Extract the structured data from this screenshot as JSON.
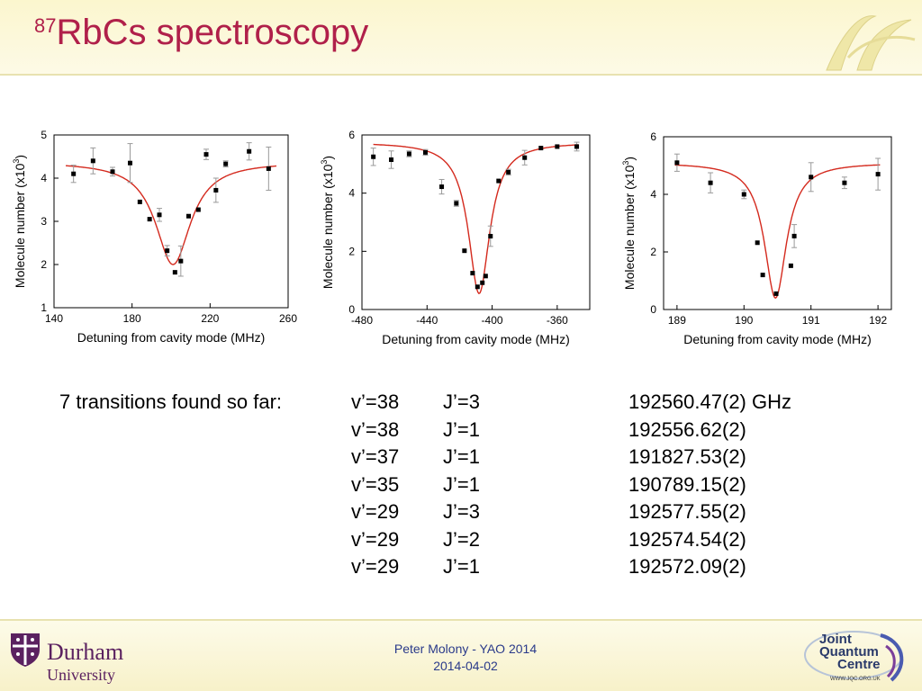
{
  "slide": {
    "title_sup": "87",
    "title_main": "RbCs spectroscopy"
  },
  "transitions": {
    "label": "7 transitions found so far:",
    "rows": [
      {
        "v": "v’=38",
        "j": "J’=3",
        "freq": "192560.47(2) GHz"
      },
      {
        "v": "v’=38",
        "j": "J’=1",
        "freq": "192556.62(2)"
      },
      {
        "v": "v’=37",
        "j": "J’=1",
        "freq": "191827.53(2)"
      },
      {
        "v": "v’=35",
        "j": "J’=1",
        "freq": "190789.15(2)"
      },
      {
        "v": "v’=29",
        "j": "J’=3",
        "freq": "192577.55(2)"
      },
      {
        "v": "v’=29",
        "j": "J’=2",
        "freq": "192574.54(2)"
      },
      {
        "v": "v’=29",
        "j": "J’=1",
        "freq": "192572.09(2)"
      }
    ]
  },
  "footer": {
    "author": "Peter Molony - YAO 2014",
    "date": "2014-04-02",
    "durham_name": "Durham",
    "durham_sub": "University",
    "jqc_line1": "Joint",
    "jqc_line2": "Quantum",
    "jqc_line3": "Centre",
    "jqc_url": "WWW.JQC.ORG.UK"
  },
  "colors": {
    "title": "#b0204a",
    "fit_line": "#d42a1e",
    "points": "#000000",
    "error_bars": "#9a9a9a",
    "footer_text": "#2a3a8a"
  },
  "chart_data": [
    {
      "type": "scatter",
      "xlabel": "Detuning from cavity mode (MHz)",
      "ylabel": "Molecule number (x10",
      "ylabel_sup": "3",
      "xlim": [
        140,
        260
      ],
      "ylim": [
        1,
        5
      ],
      "xticks": [
        140,
        180,
        220,
        260
      ],
      "yticks": [
        1,
        2,
        3,
        4,
        5
      ],
      "points": [
        {
          "x": 150,
          "y": 4.1,
          "err": 0.2
        },
        {
          "x": 160,
          "y": 4.4,
          "err": 0.3
        },
        {
          "x": 170,
          "y": 4.15,
          "err": 0.1
        },
        {
          "x": 179,
          "y": 4.35,
          "err": 0.45
        },
        {
          "x": 184,
          "y": 3.45,
          "err": 0
        },
        {
          "x": 189,
          "y": 3.05,
          "err": 0
        },
        {
          "x": 194,
          "y": 3.15,
          "err": 0.15
        },
        {
          "x": 198,
          "y": 2.32,
          "err": 0.12
        },
        {
          "x": 202,
          "y": 1.82,
          "err": 0
        },
        {
          "x": 205,
          "y": 2.08,
          "err": 0.35
        },
        {
          "x": 209,
          "y": 3.12,
          "err": 0
        },
        {
          "x": 214,
          "y": 3.27,
          "err": 0
        },
        {
          "x": 218,
          "y": 4.55,
          "err": 0.12
        },
        {
          "x": 223,
          "y": 3.72,
          "err": 0.28
        },
        {
          "x": 228,
          "y": 4.33,
          "err": 0.07
        },
        {
          "x": 240,
          "y": 4.62,
          "err": 0.2
        },
        {
          "x": 250,
          "y": 4.22,
          "err": 0.5
        }
      ],
      "fit": {
        "baseline": 4.38,
        "depth": 2.38,
        "center": 201,
        "hwhm": 11
      }
    },
    {
      "type": "scatter",
      "xlabel": "Detuning from cavity mode (MHz)",
      "ylabel": "Molecule number (x10",
      "ylabel_sup": "3",
      "xlim": [
        -480,
        -340
      ],
      "ylim": [
        0,
        6
      ],
      "xticks": [
        -480,
        -440,
        -400,
        -360
      ],
      "yticks": [
        0,
        2,
        4,
        6
      ],
      "points": [
        {
          "x": -473,
          "y": 5.25,
          "err": 0.3
        },
        {
          "x": -462,
          "y": 5.15,
          "err": 0.3
        },
        {
          "x": -451,
          "y": 5.35,
          "err": 0.1
        },
        {
          "x": -441,
          "y": 5.4,
          "err": 0.1
        },
        {
          "x": -431,
          "y": 4.22,
          "err": 0.25
        },
        {
          "x": -422,
          "y": 3.65,
          "err": 0.1
        },
        {
          "x": -417,
          "y": 2.02,
          "err": 0
        },
        {
          "x": -412,
          "y": 1.25,
          "err": 0
        },
        {
          "x": -409,
          "y": 0.78,
          "err": 0
        },
        {
          "x": -406,
          "y": 0.92,
          "err": 0
        },
        {
          "x": -404,
          "y": 1.15,
          "err": 0
        },
        {
          "x": -401,
          "y": 2.52,
          "err": 0.35
        },
        {
          "x": -396,
          "y": 4.42,
          "err": 0
        },
        {
          "x": -390,
          "y": 4.72,
          "err": 0.1
        },
        {
          "x": -380,
          "y": 5.22,
          "err": 0.25
        },
        {
          "x": -370,
          "y": 5.55,
          "err": 0
        },
        {
          "x": -360,
          "y": 5.6,
          "err": 0
        },
        {
          "x": -348,
          "y": 5.6,
          "err": 0.15
        }
      ],
      "fit": {
        "baseline": 5.75,
        "depth": 5.2,
        "center": -408,
        "hwhm": 8
      }
    },
    {
      "type": "scatter",
      "xlabel": "Detuning from cavity mode (MHz)",
      "ylabel": "Molecule number (x10",
      "ylabel_sup": "3",
      "xlim": [
        188.8,
        192.2
      ],
      "ylim": [
        0,
        6
      ],
      "xticks": [
        189,
        190,
        191,
        192
      ],
      "yticks": [
        0,
        2,
        4,
        6
      ],
      "points": [
        {
          "x": 189.0,
          "y": 5.1,
          "err": 0.3
        },
        {
          "x": 189.5,
          "y": 4.4,
          "err": 0.35
        },
        {
          "x": 190.0,
          "y": 4.0,
          "err": 0.15
        },
        {
          "x": 190.2,
          "y": 2.32,
          "err": 0
        },
        {
          "x": 190.28,
          "y": 1.2,
          "err": 0
        },
        {
          "x": 190.48,
          "y": 0.55,
          "err": 0
        },
        {
          "x": 190.7,
          "y": 1.52,
          "err": 0
        },
        {
          "x": 190.75,
          "y": 2.55,
          "err": 0.4
        },
        {
          "x": 191.0,
          "y": 4.6,
          "err": 0.5
        },
        {
          "x": 191.5,
          "y": 4.4,
          "err": 0.2
        },
        {
          "x": 192.0,
          "y": 4.7,
          "err": 0.55
        }
      ],
      "fit": {
        "baseline": 5.1,
        "depth": 4.7,
        "center": 190.47,
        "hwhm": 0.2
      }
    }
  ]
}
